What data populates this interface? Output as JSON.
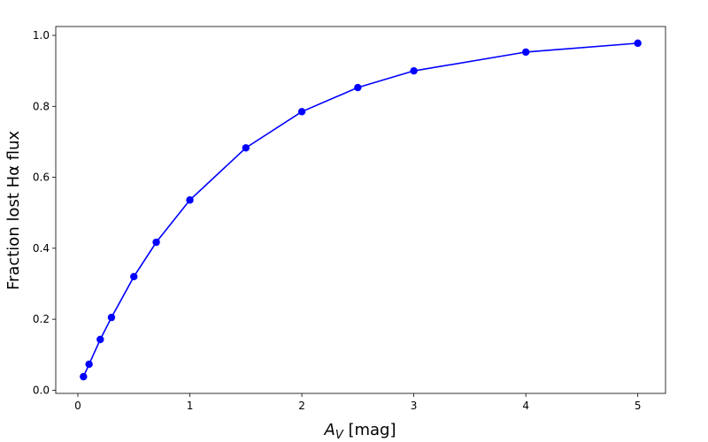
{
  "chart_data": {
    "type": "line",
    "xlabel": [
      "A",
      "V",
      " [mag]"
    ],
    "ylabel": "Fraction lost Hα flux",
    "x": [
      0.05,
      0.1,
      0.2,
      0.3,
      0.5,
      0.7,
      1,
      1.5,
      2,
      2.5,
      3,
      4,
      5
    ],
    "series": [
      {
        "color": "#0000ff",
        "values": [
          0.038,
          0.073,
          0.143,
          0.205,
          0.32,
          0.417,
          0.536,
          0.683,
          0.785,
          0.853,
          0.9,
          0.953,
          0.978
        ]
      }
    ],
    "xlim": [
      -0.1975,
      5.2475
    ],
    "ylim": [
      -0.009,
      1.025
    ],
    "xticks": [
      0,
      1,
      2,
      3,
      4,
      5
    ],
    "yticks": [
      {
        "value": 0,
        "label": "0.0"
      },
      0.2,
      0.4,
      0.6,
      0.8,
      {
        "value": 1,
        "label": "1.0"
      }
    ],
    "grid": false
  }
}
